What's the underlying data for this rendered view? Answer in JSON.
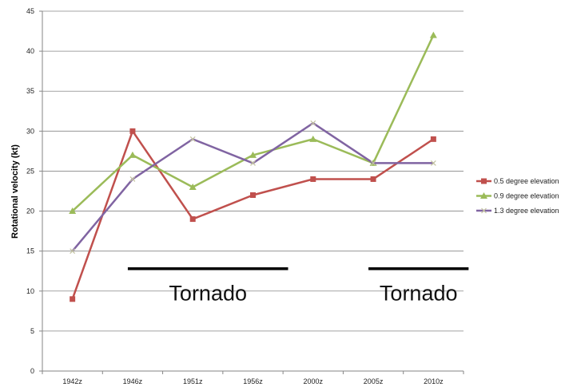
{
  "chart_data": {
    "type": "line",
    "title": "",
    "xlabel": "",
    "ylabel": "Rotational velocity (kt)",
    "categories": [
      "1942z",
      "1946z",
      "1951z",
      "1956z",
      "2000z",
      "2005z",
      "2010z"
    ],
    "ylim": [
      0,
      45
    ],
    "yticks": [
      0,
      5,
      10,
      15,
      20,
      25,
      30,
      35,
      40,
      45
    ],
    "grid": true,
    "legend_position": "right",
    "series": [
      {
        "name": "0.5 degree elevation",
        "values": [
          9,
          30,
          19,
          22,
          24,
          24,
          29
        ],
        "color": "#c0504d",
        "marker": "square"
      },
      {
        "name": "0.9 degree elevation",
        "values": [
          20,
          27,
          23,
          27,
          29,
          26,
          42
        ],
        "color": "#9bbb59",
        "marker": "triangle"
      },
      {
        "name": "1.3 degree elevation",
        "values": [
          15,
          24,
          29,
          26,
          31,
          26,
          26
        ],
        "color": "#8064a2",
        "marker": "x"
      }
    ],
    "annotations": [
      {
        "text": "Tornado",
        "y": 12.8,
        "x_from": "1946z",
        "x_to": "1956z"
      },
      {
        "text": "Tornado",
        "y": 12.8,
        "x_from": "2005z",
        "x_to": "2010z"
      }
    ]
  }
}
